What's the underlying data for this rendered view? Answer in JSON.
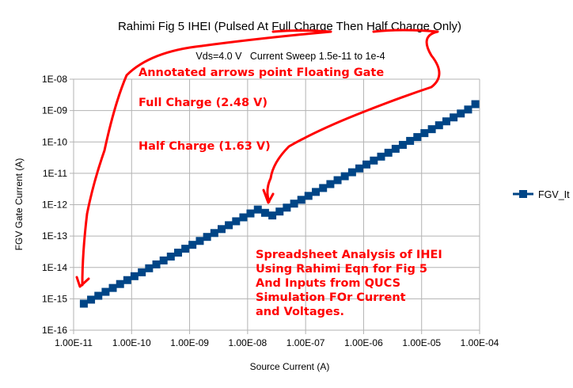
{
  "chart_data": {
    "type": "scatter",
    "title": "Rahimi Fig 5 IHEI (Pulsed At Full Charge Then Half Charge Only)",
    "subtitle": "Vds=4.0 V   Current Sweep 1.5e-11 to 1e-4",
    "xlabel": "Source Current (A)",
    "ylabel": "FGV Gate Current (A)",
    "xscale": "log",
    "yscale": "log",
    "xlim": [
      1e-11,
      0.0001
    ],
    "ylim": [
      1e-16,
      1e-08
    ],
    "xticks": [
      "1.00E-11",
      "1.00E-10",
      "1.00E-09",
      "1.00E-08",
      "1.00E-07",
      "1.00E-06",
      "1.00E-05",
      "1.00E-04"
    ],
    "yticks": [
      "1E-08",
      "1E-09",
      "1E-10",
      "1E-11",
      "1E-12",
      "1E-13",
      "1E-14",
      "1E-15",
      "1E-16"
    ],
    "grid": true,
    "legend_position": "right",
    "series": [
      {
        "name": "FGV_It",
        "color": "#004586",
        "x": [
          1.5e-11,
          2e-11,
          2.67e-11,
          3.56e-11,
          4.74e-11,
          6.33e-11,
          8.43e-11,
          1.12e-10,
          1.5e-10,
          2e-10,
          2.67e-10,
          3.56e-10,
          4.74e-10,
          6.33e-10,
          8.43e-10,
          1.12e-09,
          1.5e-09,
          2e-09,
          2.67e-09,
          3.56e-09,
          4.74e-09,
          6.33e-09,
          8.43e-09,
          1.12e-08,
          1.5e-08,
          2e-08,
          2.67e-08,
          3.56e-08,
          4.74e-08,
          6.33e-08,
          8.43e-08,
          1.12e-07,
          1.5e-07,
          2e-07,
          2.67e-07,
          3.56e-07,
          4.74e-07,
          6.33e-07,
          8.43e-07,
          1.12e-06,
          1.5e-06,
          2e-06,
          2.67e-06,
          3.56e-06,
          4.74e-06,
          6.33e-06,
          8.43e-06,
          1.12e-05,
          1.5e-05,
          2e-05,
          2.67e-05,
          3.56e-05,
          4.74e-05,
          6.33e-05,
          8.43e-05
        ],
        "y": [
          7e-16,
          9.4e-16,
          1.25e-15,
          1.67e-15,
          2.22e-15,
          2.96e-15,
          3.95e-15,
          5.26e-15,
          7e-15,
          9.4e-15,
          1.25e-14,
          1.67e-14,
          2.22e-14,
          2.96e-14,
          3.95e-14,
          5.26e-14,
          7e-14,
          9.4e-14,
          1.25e-13,
          1.67e-13,
          2.22e-13,
          2.96e-13,
          3.95e-13,
          5.26e-13,
          7e-13,
          5.5e-13,
          4.53e-13,
          6.05e-13,
          8.06e-13,
          1.08e-12,
          1.43e-12,
          1.91e-12,
          2.55e-12,
          3.4e-12,
          4.53e-12,
          6.05e-12,
          8.06e-12,
          1.08e-11,
          1.43e-11,
          1.91e-11,
          2.55e-11,
          3.4e-11,
          4.53e-11,
          6.05e-11,
          8.06e-11,
          1.08e-10,
          1.43e-10,
          1.91e-10,
          2.55e-10,
          3.4e-10,
          4.53e-10,
          6.05e-10,
          8.06e-10,
          1.08e-09,
          1.6e-09
        ]
      }
    ],
    "annotations": {
      "arrows_title": "Annotated arrows point Floating Gate",
      "full_charge": "Full Charge (2.48 V)",
      "half_charge": "Half Charge (1.63 V)",
      "analysis": "Spreadsheet Analysis of IHEI\nUsing Rahimi Eqn for Fig 5\nAnd Inputs from QUCS\nSimulation FOr Current\nand Voltages.",
      "color": "#ff0000"
    }
  }
}
